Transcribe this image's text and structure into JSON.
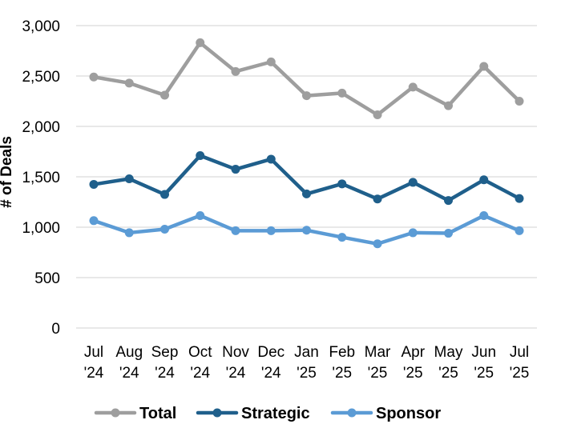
{
  "chart_data": {
    "type": "line",
    "title": "",
    "xlabel": "",
    "ylabel": "# of Deals",
    "ylim": [
      0,
      3000
    ],
    "yticks": [
      {
        "value": 0,
        "label": "0"
      },
      {
        "value": 500,
        "label": "500"
      },
      {
        "value": 1000,
        "label": "1,000"
      },
      {
        "value": 1500,
        "label": "1,500"
      },
      {
        "value": 2000,
        "label": "2,000"
      },
      {
        "value": 2500,
        "label": "2,500"
      },
      {
        "value": 3000,
        "label": "3,000"
      }
    ],
    "grid": true,
    "legend_position": "bottom",
    "categories": [
      {
        "month": "Jul",
        "year": "'24"
      },
      {
        "month": "Aug",
        "year": "'24"
      },
      {
        "month": "Sep",
        "year": "'24"
      },
      {
        "month": "Oct",
        "year": "'24"
      },
      {
        "month": "Nov",
        "year": "'24"
      },
      {
        "month": "Dec",
        "year": "'24"
      },
      {
        "month": "Jan",
        "year": "'25"
      },
      {
        "month": "Feb",
        "year": "'25"
      },
      {
        "month": "Mar",
        "year": "'25"
      },
      {
        "month": "Apr",
        "year": "'25"
      },
      {
        "month": "May",
        "year": "'25"
      },
      {
        "month": "Jun",
        "year": "'25"
      },
      {
        "month": "Jul",
        "year": "'25"
      }
    ],
    "series": [
      {
        "name": "Total",
        "color": "#9e9e9e",
        "values": [
          2490,
          2430,
          2310,
          2830,
          2545,
          2640,
          2305,
          2330,
          2115,
          2390,
          2205,
          2595,
          2250
        ]
      },
      {
        "name": "Strategic",
        "color": "#1f5f8b",
        "values": [
          1425,
          1480,
          1325,
          1710,
          1575,
          1675,
          1330,
          1430,
          1280,
          1445,
          1265,
          1470,
          1285
        ]
      },
      {
        "name": "Sponsor",
        "color": "#5b9bd5",
        "values": [
          1065,
          945,
          980,
          1115,
          965,
          965,
          970,
          900,
          835,
          945,
          940,
          1115,
          965
        ]
      }
    ]
  }
}
